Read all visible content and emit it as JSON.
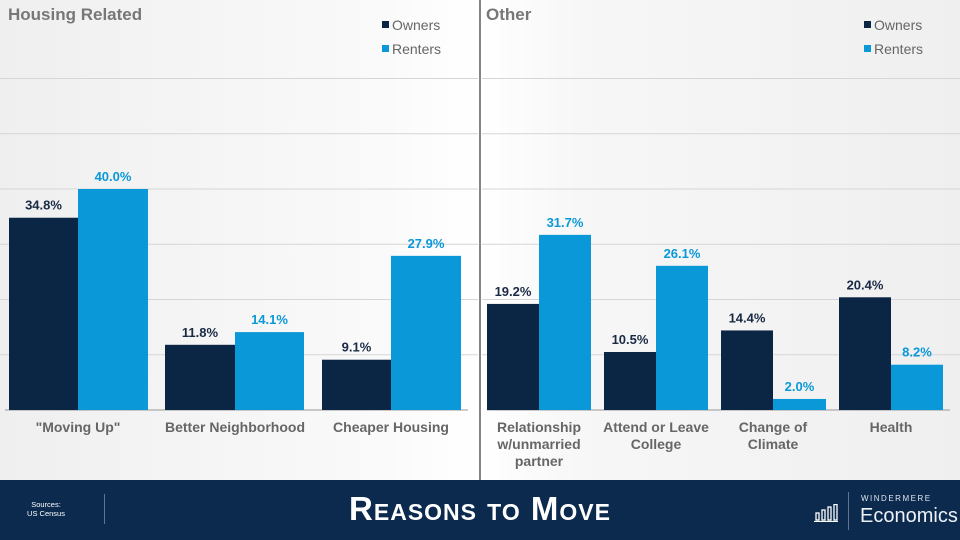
{
  "colors": {
    "owners": "#0b2545",
    "renters": "#0a98d8",
    "footer": "#0b2a4e"
  },
  "chart_data": [
    {
      "type": "bar",
      "title": "Housing Related",
      "legend": [
        "Owners",
        "Renters"
      ],
      "legend_position": "top-right",
      "ylim": [
        0,
        60
      ],
      "grid": true,
      "categories": [
        "\"Moving Up\"",
        "Better Neighborhood",
        "Cheaper Housing"
      ],
      "series": [
        {
          "name": "Owners",
          "values": [
            34.8,
            11.8,
            9.1
          ],
          "labels": [
            "34.8%",
            "11.8%",
            "9.1%"
          ]
        },
        {
          "name": "Renters",
          "values": [
            40.0,
            14.1,
            27.9
          ],
          "labels": [
            "40.0%",
            "14.1%",
            "27.9%"
          ]
        }
      ]
    },
    {
      "type": "bar",
      "title": "Other",
      "legend": [
        "Owners",
        "Renters"
      ],
      "legend_position": "top-right",
      "ylim": [
        0,
        60
      ],
      "grid": true,
      "categories": [
        [
          "Relationship",
          "w/unmarried",
          "partner"
        ],
        [
          "Attend or Leave",
          "College"
        ],
        [
          "Change of",
          "Climate"
        ],
        [
          "Health"
        ]
      ],
      "series": [
        {
          "name": "Owners",
          "values": [
            19.2,
            10.5,
            14.4,
            20.4
          ],
          "labels": [
            "19.2%",
            "10.5%",
            "14.4%",
            "20.4%"
          ]
        },
        {
          "name": "Renters",
          "values": [
            31.7,
            26.1,
            2.0,
            8.2
          ],
          "labels": [
            "31.7%",
            "26.1%",
            "2.0%",
            "8.2%"
          ]
        }
      ]
    }
  ],
  "footer": {
    "sources_label": "Sources:",
    "sources_value": "US Census",
    "title": "Reasons to Move",
    "brand_top": "WINDERMERE",
    "brand_bottom": "Economics"
  }
}
